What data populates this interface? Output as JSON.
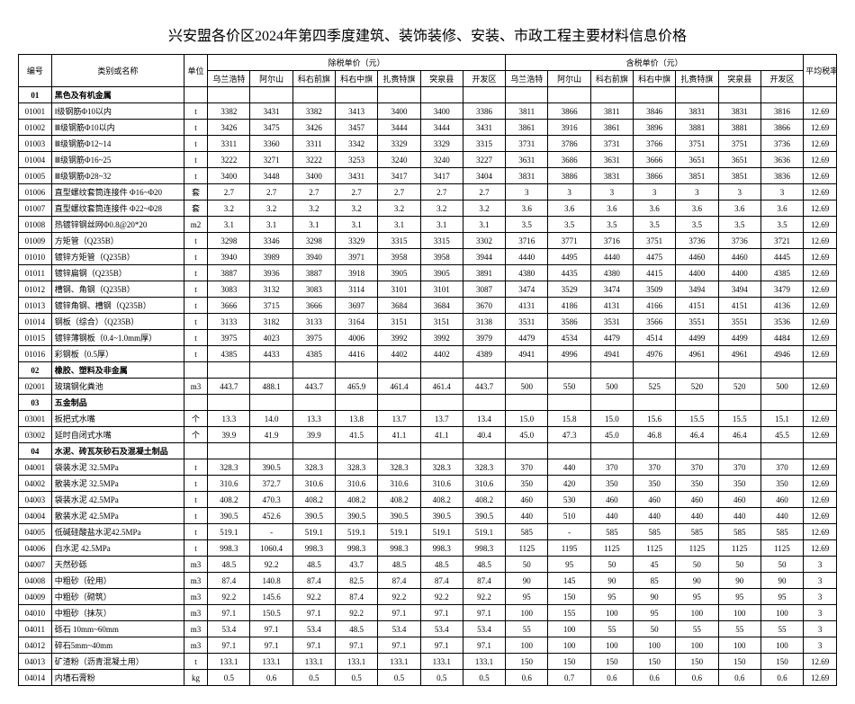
{
  "title": "兴安盟各价区2024年第四季度建筑、装饰装修、安装、市政工程主要材料信息价格",
  "header": {
    "id": "编号",
    "name": "类别或名称",
    "unit": "单位",
    "group_ex": "除税单价（元）",
    "group_in": "含税单价（元）",
    "rate": "平均税率%",
    "regions": [
      "乌兰浩特",
      "阿尔山",
      "科右前旗",
      "科右中旗",
      "扎赉特旗",
      "突泉县",
      "开发区"
    ]
  },
  "sections": [
    {
      "id": "01",
      "name": "黑色及有机金属",
      "rows": [
        {
          "id": "01001",
          "name": "Ⅰ级钢筋Φ10以内",
          "unit": "t",
          "ex": [
            "3382",
            "3431",
            "3382",
            "3413",
            "3400",
            "3400",
            "3386"
          ],
          "in": [
            "3811",
            "3866",
            "3811",
            "3846",
            "3831",
            "3831",
            "3816"
          ],
          "rate": "12.69"
        },
        {
          "id": "01002",
          "name": "Ⅲ级钢筋Φ10以内",
          "unit": "t",
          "ex": [
            "3426",
            "3475",
            "3426",
            "3457",
            "3444",
            "3444",
            "3431"
          ],
          "in": [
            "3861",
            "3916",
            "3861",
            "3896",
            "3881",
            "3881",
            "3866"
          ],
          "rate": "12.69"
        },
        {
          "id": "01003",
          "name": "Ⅲ级钢筋Φ12~14",
          "unit": "t",
          "ex": [
            "3311",
            "3360",
            "3311",
            "3342",
            "3329",
            "3329",
            "3315"
          ],
          "in": [
            "3731",
            "3786",
            "3731",
            "3766",
            "3751",
            "3751",
            "3736"
          ],
          "rate": "12.69"
        },
        {
          "id": "01004",
          "name": "Ⅲ级钢筋Φ16~25",
          "unit": "t",
          "ex": [
            "3222",
            "3271",
            "3222",
            "3253",
            "3240",
            "3240",
            "3227"
          ],
          "in": [
            "3631",
            "3686",
            "3631",
            "3666",
            "3651",
            "3651",
            "3636"
          ],
          "rate": "12.69"
        },
        {
          "id": "01005",
          "name": "Ⅲ级钢筋Φ28~32",
          "unit": "t",
          "ex": [
            "3400",
            "3448",
            "3400",
            "3431",
            "3417",
            "3417",
            "3404"
          ],
          "in": [
            "3831",
            "3886",
            "3831",
            "3866",
            "3851",
            "3851",
            "3836"
          ],
          "rate": "12.69"
        },
        {
          "id": "01006",
          "name": "直型螺纹套筒连接件 Φ16~Φ20",
          "unit": "套",
          "ex": [
            "2.7",
            "2.7",
            "2.7",
            "2.7",
            "2.7",
            "2.7",
            "2.7"
          ],
          "in": [
            "3",
            "3",
            "3",
            "3",
            "3",
            "3",
            "3"
          ],
          "rate": "12.69"
        },
        {
          "id": "01007",
          "name": "直型螺纹套筒连接件 Φ22~Φ28",
          "unit": "套",
          "ex": [
            "3.2",
            "3.2",
            "3.2",
            "3.2",
            "3.2",
            "3.2",
            "3.2"
          ],
          "in": [
            "3.6",
            "3.6",
            "3.6",
            "3.6",
            "3.6",
            "3.6",
            "3.6"
          ],
          "rate": "12.69"
        },
        {
          "id": "01008",
          "name": "热镀锌钢丝网Φ0.8@20*20",
          "unit": "m2",
          "ex": [
            "3.1",
            "3.1",
            "3.1",
            "3.1",
            "3.1",
            "3.1",
            "3.1"
          ],
          "in": [
            "3.5",
            "3.5",
            "3.5",
            "3.5",
            "3.5",
            "3.5",
            "3.5"
          ],
          "rate": "12.69"
        },
        {
          "id": "01009",
          "name": "方矩管（Q235B）",
          "unit": "t",
          "ex": [
            "3298",
            "3346",
            "3298",
            "3329",
            "3315",
            "3315",
            "3302"
          ],
          "in": [
            "3716",
            "3771",
            "3716",
            "3751",
            "3736",
            "3736",
            "3721"
          ],
          "rate": "12.69"
        },
        {
          "id": "01010",
          "name": "镀锌方矩管（Q235B）",
          "unit": "t",
          "ex": [
            "3940",
            "3989",
            "3940",
            "3971",
            "3958",
            "3958",
            "3944"
          ],
          "in": [
            "4440",
            "4495",
            "4440",
            "4475",
            "4460",
            "4460",
            "4445"
          ],
          "rate": "12.69"
        },
        {
          "id": "01011",
          "name": "镀锌扁钢（Q235B）",
          "unit": "t",
          "ex": [
            "3887",
            "3936",
            "3887",
            "3918",
            "3905",
            "3905",
            "3891"
          ],
          "in": [
            "4380",
            "4435",
            "4380",
            "4415",
            "4400",
            "4400",
            "4385"
          ],
          "rate": "12.69"
        },
        {
          "id": "01012",
          "name": "槽钢、角钢（Q235B）",
          "unit": "t",
          "ex": [
            "3083",
            "3132",
            "3083",
            "3114",
            "3101",
            "3101",
            "3087"
          ],
          "in": [
            "3474",
            "3529",
            "3474",
            "3509",
            "3494",
            "3494",
            "3479"
          ],
          "rate": "12.69"
        },
        {
          "id": "01013",
          "name": "镀锌角钢、槽钢（Q235B）",
          "unit": "t",
          "ex": [
            "3666",
            "3715",
            "3666",
            "3697",
            "3684",
            "3684",
            "3670"
          ],
          "in": [
            "4131",
            "4186",
            "4131",
            "4166",
            "4151",
            "4151",
            "4136"
          ],
          "rate": "12.69"
        },
        {
          "id": "01014",
          "name": "钢板（综合）（Q235B）",
          "unit": "t",
          "ex": [
            "3133",
            "3182",
            "3133",
            "3164",
            "3151",
            "3151",
            "3138"
          ],
          "in": [
            "3531",
            "3586",
            "3531",
            "3566",
            "3551",
            "3551",
            "3536"
          ],
          "rate": "12.69"
        },
        {
          "id": "01015",
          "name": "镀锌薄钢板（0.4~1.0mm厚）",
          "unit": "t",
          "ex": [
            "3975",
            "4023",
            "3975",
            "4006",
            "3992",
            "3992",
            "3979"
          ],
          "in": [
            "4479",
            "4534",
            "4479",
            "4514",
            "4499",
            "4499",
            "4484"
          ],
          "rate": "12.69"
        },
        {
          "id": "01016",
          "name": "彩钢板（0.5厚）",
          "unit": "t",
          "ex": [
            "4385",
            "4433",
            "4385",
            "4416",
            "4402",
            "4402",
            "4389"
          ],
          "in": [
            "4941",
            "4996",
            "4941",
            "4976",
            "4961",
            "4961",
            "4946"
          ],
          "rate": "12.69"
        }
      ]
    },
    {
      "id": "02",
      "name": "橡胶、塑料及非金属",
      "rows": [
        {
          "id": "02001",
          "name": "玻璃钢化粪池",
          "unit": "m3",
          "ex": [
            "443.7",
            "488.1",
            "443.7",
            "465.9",
            "461.4",
            "461.4",
            "443.7"
          ],
          "in": [
            "500",
            "550",
            "500",
            "525",
            "520",
            "520",
            "500"
          ],
          "rate": "12.69"
        }
      ]
    },
    {
      "id": "03",
      "name": "五金制品",
      "rows": [
        {
          "id": "03001",
          "name": "扳把式水嘴",
          "unit": "个",
          "ex": [
            "13.3",
            "14.0",
            "13.3",
            "13.8",
            "13.7",
            "13.7",
            "13.4"
          ],
          "in": [
            "15.0",
            "15.8",
            "15.0",
            "15.6",
            "15.5",
            "15.5",
            "15.1"
          ],
          "rate": "12.69"
        },
        {
          "id": "03002",
          "name": "延时自闭式水嘴",
          "unit": "个",
          "ex": [
            "39.9",
            "41.9",
            "39.9",
            "41.5",
            "41.1",
            "41.1",
            "40.4"
          ],
          "in": [
            "45.0",
            "47.3",
            "45.0",
            "46.8",
            "46.4",
            "46.4",
            "45.5"
          ],
          "rate": "12.69"
        }
      ]
    },
    {
      "id": "04",
      "name": "水泥、砖瓦灰砂石及混凝土制品",
      "rows": [
        {
          "id": "04001",
          "name": "袋装水泥 32.5MPa",
          "unit": "t",
          "ex": [
            "328.3",
            "390.5",
            "328.3",
            "328.3",
            "328.3",
            "328.3",
            "328.3"
          ],
          "in": [
            "370",
            "440",
            "370",
            "370",
            "370",
            "370",
            "370"
          ],
          "rate": "12.69"
        },
        {
          "id": "04002",
          "name": "散装水泥 32.5MPa",
          "unit": "t",
          "ex": [
            "310.6",
            "372.7",
            "310.6",
            "310.6",
            "310.6",
            "310.6",
            "310.6"
          ],
          "in": [
            "350",
            "420",
            "350",
            "350",
            "350",
            "350",
            "350"
          ],
          "rate": "12.69"
        },
        {
          "id": "04003",
          "name": "袋装水泥 42.5MPa",
          "unit": "t",
          "ex": [
            "408.2",
            "470.3",
            "408.2",
            "408.2",
            "408.2",
            "408.2",
            "408.2"
          ],
          "in": [
            "460",
            "530",
            "460",
            "460",
            "460",
            "460",
            "460"
          ],
          "rate": "12.69"
        },
        {
          "id": "04004",
          "name": "散装水泥 42.5MPa",
          "unit": "t",
          "ex": [
            "390.5",
            "452.6",
            "390.5",
            "390.5",
            "390.5",
            "390.5",
            "390.5"
          ],
          "in": [
            "440",
            "510",
            "440",
            "440",
            "440",
            "440",
            "440"
          ],
          "rate": "12.69"
        },
        {
          "id": "04005",
          "name": "低碱硅酸盐水泥42.5MPa",
          "unit": "t",
          "ex": [
            "519.1",
            "-",
            "519.1",
            "519.1",
            "519.1",
            "519.1",
            "519.1"
          ],
          "in": [
            "585",
            "-",
            "585",
            "585",
            "585",
            "585",
            "585"
          ],
          "rate": "12.69"
        },
        {
          "id": "04006",
          "name": "白水泥 42.5MPa",
          "unit": "t",
          "ex": [
            "998.3",
            "1060.4",
            "998.3",
            "998.3",
            "998.3",
            "998.3",
            "998.3"
          ],
          "in": [
            "1125",
            "1195",
            "1125",
            "1125",
            "1125",
            "1125",
            "1125"
          ],
          "rate": "12.69"
        },
        {
          "id": "04007",
          "name": "天然砂砾",
          "unit": "m3",
          "ex": [
            "48.5",
            "92.2",
            "48.5",
            "43.7",
            "48.5",
            "48.5",
            "48.5"
          ],
          "in": [
            "50",
            "95",
            "50",
            "45",
            "50",
            "50",
            "50"
          ],
          "rate": "3"
        },
        {
          "id": "04008",
          "name": "中粗砂（砼用）",
          "unit": "m3",
          "ex": [
            "87.4",
            "140.8",
            "87.4",
            "82.5",
            "87.4",
            "87.4",
            "87.4"
          ],
          "in": [
            "90",
            "145",
            "90",
            "85",
            "90",
            "90",
            "90"
          ],
          "rate": "3"
        },
        {
          "id": "04009",
          "name": "中粗砂（砌筑）",
          "unit": "m3",
          "ex": [
            "92.2",
            "145.6",
            "92.2",
            "87.4",
            "92.2",
            "92.2",
            "92.2"
          ],
          "in": [
            "95",
            "150",
            "95",
            "90",
            "95",
            "95",
            "95"
          ],
          "rate": "3"
        },
        {
          "id": "04010",
          "name": "中粗砂（抹灰）",
          "unit": "m3",
          "ex": [
            "97.1",
            "150.5",
            "97.1",
            "92.2",
            "97.1",
            "97.1",
            "97.1"
          ],
          "in": [
            "100",
            "155",
            "100",
            "95",
            "100",
            "100",
            "100"
          ],
          "rate": "3"
        },
        {
          "id": "04011",
          "name": "砾石 10mm~60mm",
          "unit": "m3",
          "ex": [
            "53.4",
            "97.1",
            "53.4",
            "48.5",
            "53.4",
            "53.4",
            "53.4"
          ],
          "in": [
            "55",
            "100",
            "55",
            "50",
            "55",
            "55",
            "55"
          ],
          "rate": "3"
        },
        {
          "id": "04012",
          "name": "碎石5mm~40mm",
          "unit": "m3",
          "ex": [
            "97.1",
            "97.1",
            "97.1",
            "97.1",
            "97.1",
            "97.1",
            "97.1"
          ],
          "in": [
            "100",
            "100",
            "100",
            "100",
            "100",
            "100",
            "100"
          ],
          "rate": "3"
        },
        {
          "id": "04013",
          "name": "矿渣粉（沥青混凝土用）",
          "unit": "t",
          "ex": [
            "133.1",
            "133.1",
            "133.1",
            "133.1",
            "133.1",
            "133.1",
            "133.1"
          ],
          "in": [
            "150",
            "150",
            "150",
            "150",
            "150",
            "150",
            "150"
          ],
          "rate": "12.69"
        },
        {
          "id": "04014",
          "name": "内墙石膏粉",
          "unit": "kg",
          "ex": [
            "0.5",
            "0.6",
            "0.5",
            "0.5",
            "0.5",
            "0.5",
            "0.5"
          ],
          "in": [
            "0.6",
            "0.7",
            "0.6",
            "0.6",
            "0.6",
            "0.6",
            "0.6"
          ],
          "rate": "12.69"
        }
      ]
    }
  ]
}
